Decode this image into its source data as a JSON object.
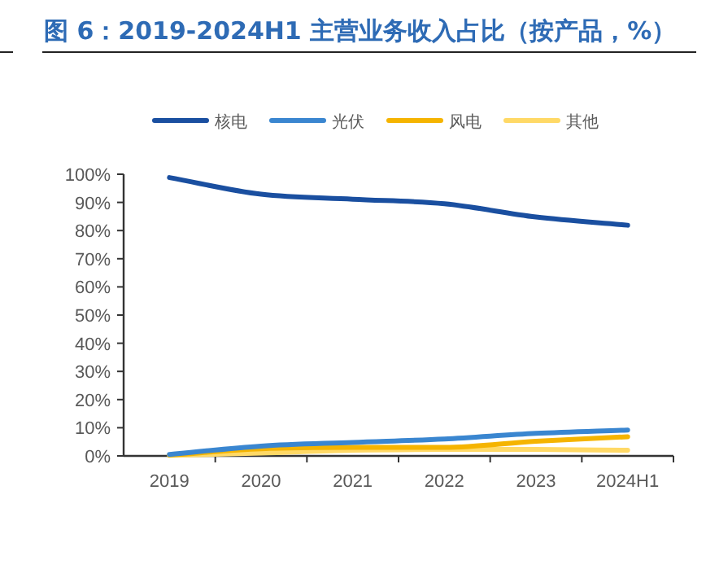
{
  "chart_data": {
    "type": "line",
    "title": "图 6：2019-2024H1 主营业务收入占比（按产品，%）",
    "categories": [
      "2019",
      "2020",
      "2021",
      "2022",
      "2023",
      "2024H1"
    ],
    "series": [
      {
        "name": "核电",
        "color": "#1a4fa0",
        "values": [
          98.8,
          92.9,
          91.1,
          89.5,
          84.8,
          81.9
        ]
      },
      {
        "name": "光伏",
        "color": "#3a86d0",
        "values": [
          0.5,
          3.5,
          4.8,
          6,
          8,
          9.2
        ]
      },
      {
        "name": "风电",
        "color": "#f5b400",
        "values": [
          0.3,
          2.5,
          3,
          3,
          5.2,
          6.8
        ]
      },
      {
        "name": "其他",
        "color": "#ffd966",
        "values": [
          0.2,
          1,
          2,
          2.3,
          2.3,
          2
        ]
      }
    ],
    "ylim": [
      0,
      100
    ],
    "yticks": [
      {
        "value": 0,
        "label": "0%"
      },
      {
        "value": 10,
        "label": "10%"
      },
      {
        "value": 20,
        "label": "20%"
      },
      {
        "value": 30,
        "label": "30%"
      },
      {
        "value": 40,
        "label": "40%"
      },
      {
        "value": 50,
        "label": "50%"
      },
      {
        "value": 60,
        "label": "60%"
      },
      {
        "value": 70,
        "label": "70%"
      },
      {
        "value": 80,
        "label": "80%"
      },
      {
        "value": 90,
        "label": "90%"
      },
      {
        "value": 100,
        "label": "100%"
      }
    ],
    "legend": "top"
  }
}
